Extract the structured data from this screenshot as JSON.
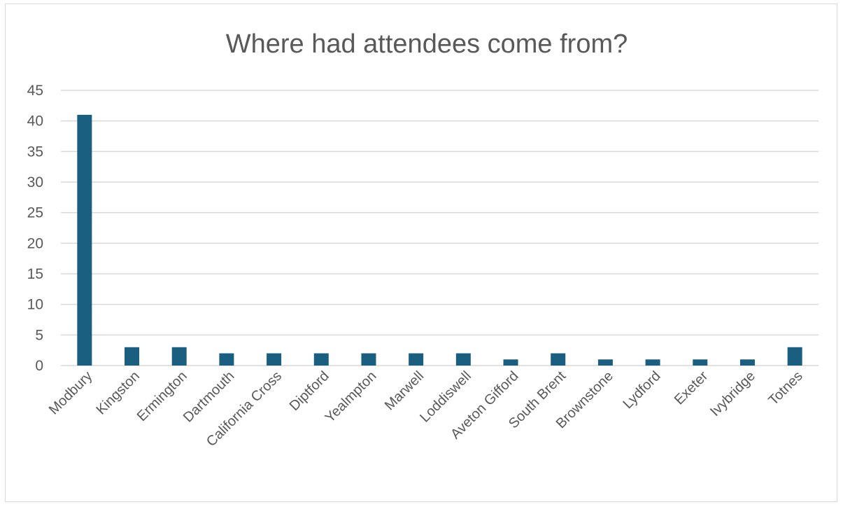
{
  "chart_data": {
    "type": "bar",
    "title": "Where had attendees come from?",
    "xlabel": "",
    "ylabel": "",
    "categories": [
      "Modbury",
      "Kingston",
      "Ermington",
      "Dartmouth",
      "California Cross",
      "Diptford",
      "Yealmpton",
      "Marwell",
      "Loddiswell",
      "Aveton Gifford",
      "South Brent",
      "Brownstone",
      "Lydford",
      "Exeter",
      "Ivybridge",
      "Totnes"
    ],
    "values": [
      41,
      3,
      3,
      2,
      2,
      2,
      2,
      2,
      2,
      1,
      2,
      1,
      1,
      1,
      1,
      3
    ],
    "ylim": [
      0,
      45
    ],
    "yticks": [
      0,
      5,
      10,
      15,
      20,
      25,
      30,
      35,
      40,
      45
    ],
    "bar_color": "#1a5e80",
    "grid": true,
    "legend": "none"
  }
}
